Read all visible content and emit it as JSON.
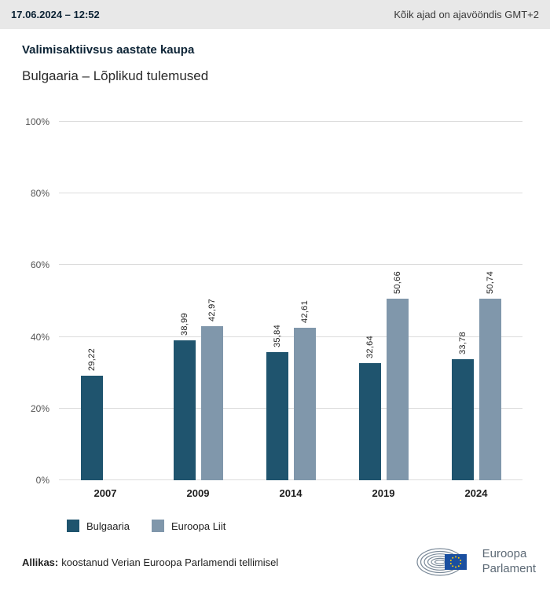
{
  "header": {
    "datetime": "17.06.2024 – 12:52",
    "timezone_note": "Kõik ajad on ajavööndis GMT+2"
  },
  "title": "Valimisaktiivsus aastate kaupa",
  "subtitle": "Bulgaaria – Lõplikud tulemused",
  "chart_data": {
    "type": "bar",
    "categories": [
      "2007",
      "2009",
      "2014",
      "2019",
      "2024"
    ],
    "series": [
      {
        "name": "Bulgaaria",
        "color": "#1f546e",
        "values": [
          29.22,
          38.99,
          35.84,
          32.64,
          33.78
        ],
        "labels": [
          "29,22",
          "38,99",
          "35,84",
          "32,64",
          "33,78"
        ]
      },
      {
        "name": "Euroopa Liit",
        "color": "#8097ab",
        "values": [
          null,
          42.97,
          42.61,
          50.66,
          50.74
        ],
        "labels": [
          null,
          "42,97",
          "42,61",
          "50,66",
          "50,74"
        ]
      }
    ],
    "ylim": [
      0,
      100
    ],
    "yticks": [
      "0%",
      "20%",
      "40%",
      "60%",
      "80%",
      "100%"
    ],
    "grid": true,
    "legend_position": "bottom"
  },
  "footer": {
    "source_label": "Allikas:",
    "source_text": "koostanud Verian Euroopa Parlamendi tellimisel"
  },
  "logo": {
    "line1": "Euroopa",
    "line2": "Parlament"
  }
}
